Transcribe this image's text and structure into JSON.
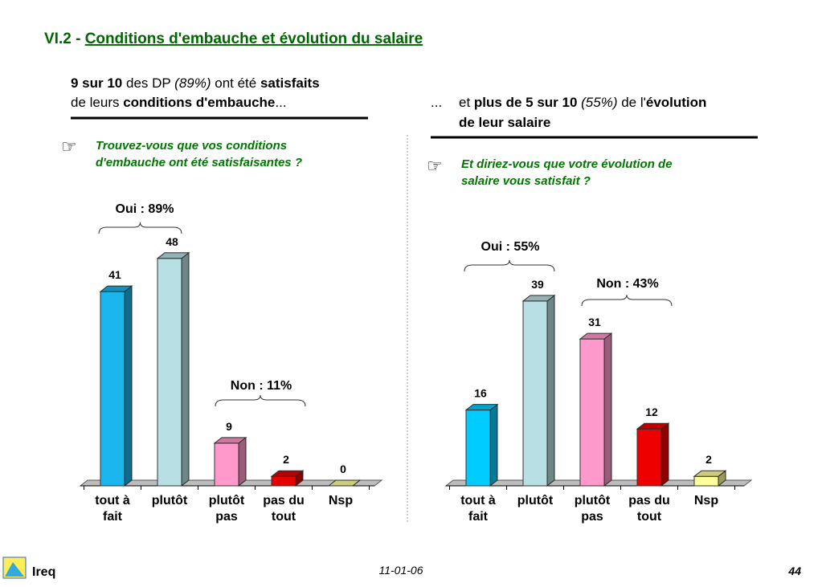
{
  "title_prefix": "VI.2 - ",
  "title": "Conditions d'embauche et évolution du salaire",
  "left_heading": {
    "l1": [
      "9 sur 10",
      " des DP ",
      "(89%)",
      " ont été ",
      "satisfaits"
    ],
    "l2": [
      "de leurs ",
      "conditions d'embauche",
      "..."
    ]
  },
  "right_heading": {
    "dots": "...",
    "l1": [
      "et ",
      "plus de 5 sur 10",
      " (55%) ",
      "de l'",
      "évolution"
    ],
    "l2": [
      "de leur salaire"
    ]
  },
  "chart_data": [
    {
      "type": "bar",
      "question": [
        "Trouvez-vous que vos conditions",
        "d'embauche ont été satisfaisantes ?"
      ],
      "categories": [
        "tout à fait",
        "plutôt",
        "plutôt pas",
        "pas du tout",
        "Nsp"
      ],
      "values": [
        41,
        48,
        9,
        2,
        0
      ],
      "colors": [
        "#19b5ec",
        "#b8dfe3",
        "#ff99cc",
        "#e60000",
        "#ffff99"
      ],
      "annotations": [
        "Oui : 89%",
        "Non : 11%"
      ]
    },
    {
      "type": "bar",
      "question": [
        "Et diriez-vous que votre évolution de",
        "salaire vous satisfait ?"
      ],
      "categories": [
        "tout à fait",
        "plutôt",
        "plutôt pas",
        "pas du tout",
        "Nsp"
      ],
      "values": [
        16,
        39,
        31,
        12,
        2
      ],
      "colors": [
        "#00ccff",
        "#b8dfe3",
        "#ff99cc",
        "#ee0000",
        "#ffff99"
      ],
      "annotations": [
        "Oui : 55%",
        "Non : 43%"
      ]
    }
  ],
  "footer": {
    "org": "Ireq",
    "date": "11-01-06",
    "page": "44"
  }
}
